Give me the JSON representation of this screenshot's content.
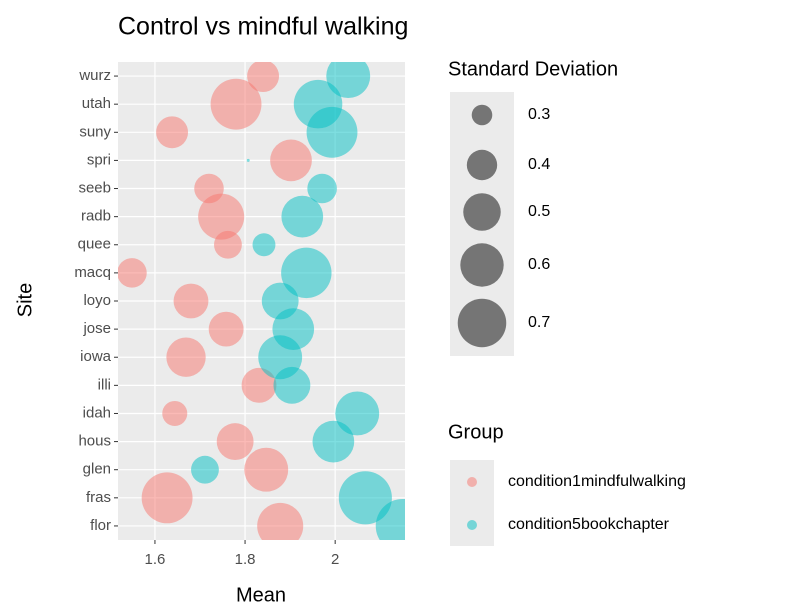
{
  "chart_data": {
    "type": "bubble",
    "title": "Control vs mindful walking",
    "x_label": "Mean",
    "y_label": "Site",
    "categories": [
      "flor",
      "fras",
      "glen",
      "hous",
      "idah",
      "illi",
      "iowa",
      "jose",
      "loyo",
      "macq",
      "quee",
      "radb",
      "seeb",
      "spri",
      "suny",
      "utah",
      "wurz"
    ],
    "xlim": [
      1.518,
      2.155
    ],
    "xticks": [
      1.6,
      1.8,
      2.0
    ],
    "grid": true,
    "size_legend_title": "Standard Deviation",
    "size_legend": [
      0.3,
      0.4,
      0.5,
      0.6,
      0.7
    ],
    "color_legend_title": "Group",
    "series": [
      {
        "name": "condition1mindfulwalking",
        "color": "#F8766D",
        "values": [
          1.878,
          1.627,
          1.847,
          1.778,
          1.644,
          1.831,
          1.669,
          1.758,
          1.68,
          1.549,
          1.762,
          1.747,
          1.72,
          1.902,
          1.638,
          1.78,
          1.84
        ],
        "sizes": [
          0.65,
          0.75,
          0.61,
          0.49,
          0.34,
          0.46,
          0.53,
          0.46,
          0.46,
          0.39,
          0.37,
          0.65,
          0.39,
          0.57,
          0.42,
          0.75,
          0.42
        ]
      },
      {
        "name": "condition5bookchapter",
        "color": "#00BFC4",
        "values": [
          2.15,
          2.067,
          1.711,
          1.996,
          2.049,
          1.904,
          1.878,
          1.907,
          1.878,
          1.936,
          1.842,
          1.927,
          1.971,
          1.807,
          1.993,
          1.962,
          2.029
        ],
        "sizes": [
          0.82,
          0.8,
          0.37,
          0.57,
          0.61,
          0.49,
          0.61,
          0.57,
          0.49,
          0.74,
          0.32,
          0.57,
          0.39,
          0.23,
          0.75,
          0.7,
          0.61
        ]
      }
    ]
  }
}
